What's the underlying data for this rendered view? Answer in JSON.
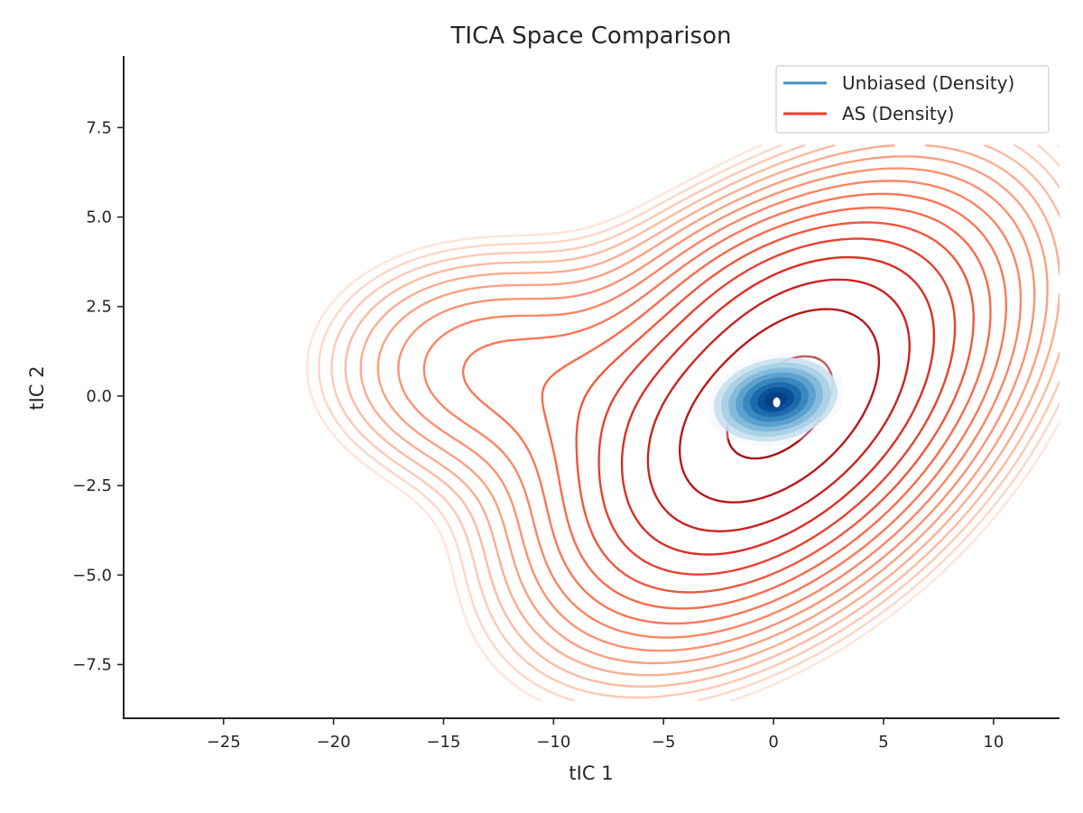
{
  "chart_data": {
    "type": "contour",
    "title": "TICA Space Comparison",
    "xlabel": "tIC 1",
    "ylabel": "tIC 2",
    "xlim": [
      -29.5,
      13
    ],
    "ylim": [
      -9,
      9.5
    ],
    "xticks": [
      -25,
      -20,
      -15,
      -10,
      -5,
      0,
      5,
      10
    ],
    "yticks": [
      -7.5,
      -5.0,
      -2.5,
      0.0,
      2.5,
      5.0,
      7.5
    ],
    "xtick_labels": [
      "−25",
      "−20",
      "−15",
      "−10",
      "−5",
      "0",
      "5",
      "10"
    ],
    "ytick_labels": [
      "−7.5",
      "−5.0",
      "−2.5",
      "0.0",
      "2.5",
      "5.0",
      "7.5"
    ],
    "grid": false,
    "legend_position": "top-right",
    "series": [
      {
        "name": "Unbiased (Density)",
        "color": "#4292c6",
        "colormap": "Blues",
        "center": [
          0.1,
          -0.1
        ],
        "spread": [
          1.5,
          0.6
        ],
        "tilt_deg": 12,
        "levels": 10
      },
      {
        "name": "AS (Density)",
        "color": "#ef3b2c",
        "colormap": "Reds",
        "components": [
          {
            "center": [
              0.3,
              -0.4
            ],
            "spread": [
              6.2,
              2.9
            ],
            "tilt_deg": 20,
            "weight": 1.0
          },
          {
            "center": [
              -13.0,
              0.8
            ],
            "spread": [
              4.6,
              2.0
            ],
            "tilt_deg": 0,
            "weight": 0.22
          },
          {
            "center": [
              0.0,
              3.3
            ],
            "spread": [
              5.0,
              1.5
            ],
            "tilt_deg": 0,
            "weight": 0.06
          }
        ],
        "levels": 16
      }
    ]
  }
}
